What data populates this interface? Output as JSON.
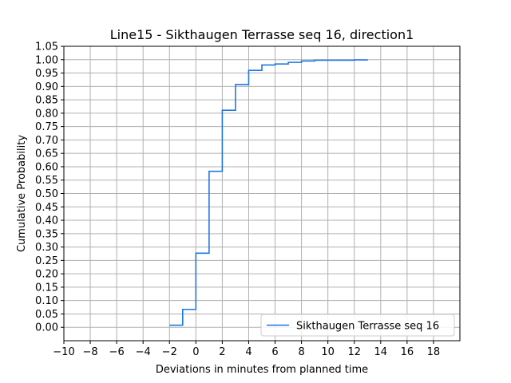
{
  "chart_data": {
    "type": "line",
    "title": "Line15 - Sikthaugen Terrasse seq 16, direction1",
    "xlabel": "Deviations in minutes from planned time",
    "ylabel": "Cumulative Probability",
    "xlim": [
      -10,
      20
    ],
    "ylim": [
      -0.05,
      1.05
    ],
    "xticks": [
      -10,
      -8,
      -6,
      -4,
      -2,
      0,
      2,
      4,
      6,
      8,
      10,
      12,
      14,
      16,
      18
    ],
    "xtick_labels": [
      "−10",
      "−8",
      "−6",
      "−4",
      "−2",
      "0",
      "2",
      "4",
      "6",
      "8",
      "10",
      "12",
      "14",
      "16",
      "18"
    ],
    "yticks": [
      0,
      0.05,
      0.1,
      0.15,
      0.2,
      0.25,
      0.3,
      0.35,
      0.4,
      0.45,
      0.5,
      0.55,
      0.6,
      0.65,
      0.7,
      0.75,
      0.8,
      0.85,
      0.9,
      0.95,
      1.0,
      1.05
    ],
    "ytick_labels": [
      "0.00",
      "0.05",
      "0.10",
      "0.15",
      "0.20",
      "0.25",
      "0.30",
      "0.35",
      "0.40",
      "0.45",
      "0.50",
      "0.55",
      "0.60",
      "0.65",
      "0.70",
      "0.75",
      "0.80",
      "0.85",
      "0.90",
      "0.95",
      "1.00",
      "1.05"
    ],
    "grid": true,
    "legend_position": "lower-right",
    "series": [
      {
        "name": "Sikthaugen Terrasse seq 16",
        "color": "#1f77e4",
        "step": "post",
        "x": [
          -2,
          -1,
          0,
          1,
          2,
          3,
          4,
          5,
          6,
          7,
          8,
          9,
          10,
          11,
          12,
          13
        ],
        "y": [
          0.008,
          0.067,
          0.277,
          0.583,
          0.811,
          0.907,
          0.96,
          0.98,
          0.984,
          0.99,
          0.995,
          0.998,
          0.998,
          0.998,
          0.999,
          1.0
        ]
      }
    ]
  }
}
